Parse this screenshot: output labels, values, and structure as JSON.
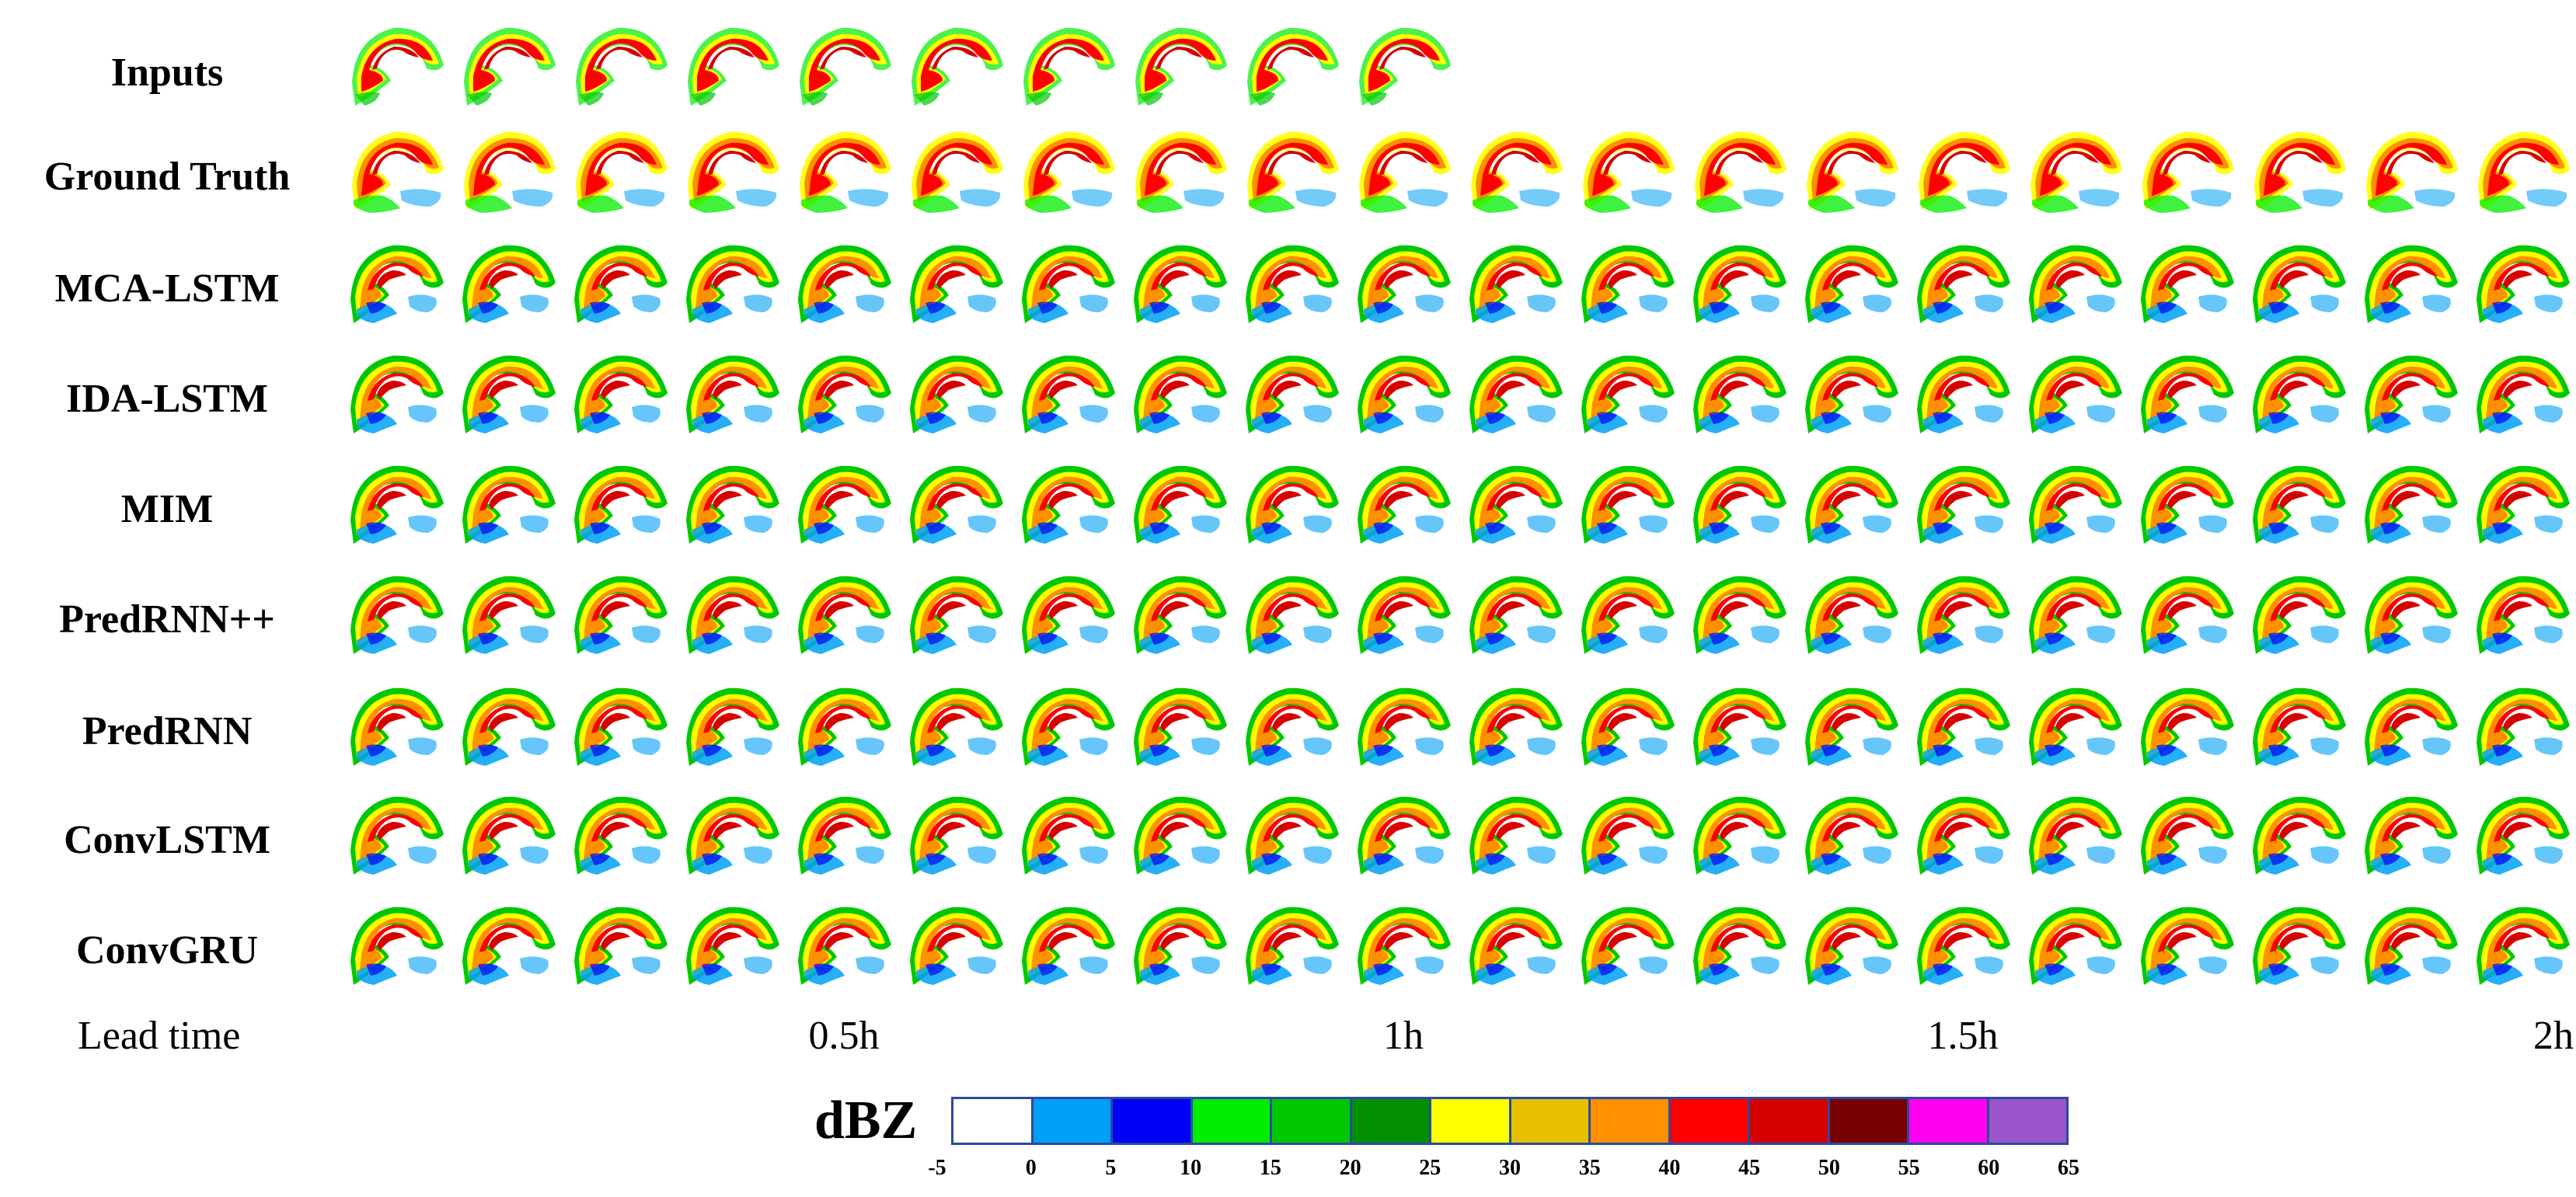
{
  "figure": {
    "rows": [
      {
        "label": "Inputs",
        "frames": 10,
        "style": "input"
      },
      {
        "label": "Ground Truth",
        "frames": 20,
        "style": "truth"
      },
      {
        "label": "MCA-LSTM",
        "frames": 20,
        "style": "pred"
      },
      {
        "label": "IDA-LSTM",
        "frames": 20,
        "style": "pred"
      },
      {
        "label": "MIM",
        "frames": 20,
        "style": "pred"
      },
      {
        "label": "PredRNN++",
        "frames": 20,
        "style": "pred"
      },
      {
        "label": "PredRNN",
        "frames": 20,
        "style": "pred"
      },
      {
        "label": "ConvLSTM",
        "frames": 20,
        "style": "pred"
      },
      {
        "label": "ConvGRU",
        "frames": 20,
        "style": "pred"
      }
    ],
    "lead_time": {
      "label": "Lead time",
      "ticks": [
        {
          "label": "0.5h",
          "frame": 5
        },
        {
          "label": "1h",
          "frame": 10
        },
        {
          "label": "1.5h",
          "frame": 15
        },
        {
          "label": "2h",
          "frame": 20
        }
      ]
    },
    "colorbar": {
      "unit": "dBZ",
      "tick_labels": [
        "-5",
        "0",
        "5",
        "10",
        "15",
        "20",
        "25",
        "30",
        "35",
        "40",
        "45",
        "50",
        "55",
        "60",
        "65"
      ],
      "colors": [
        "#ffffff",
        "#00a0f6",
        "#0000f6",
        "#00ec00",
        "#00c800",
        "#009000",
        "#ffff00",
        "#e7c000",
        "#ff9000",
        "#ff0000",
        "#d60000",
        "#780000",
        "#ff00f0",
        "#9955c9"
      ]
    }
  }
}
